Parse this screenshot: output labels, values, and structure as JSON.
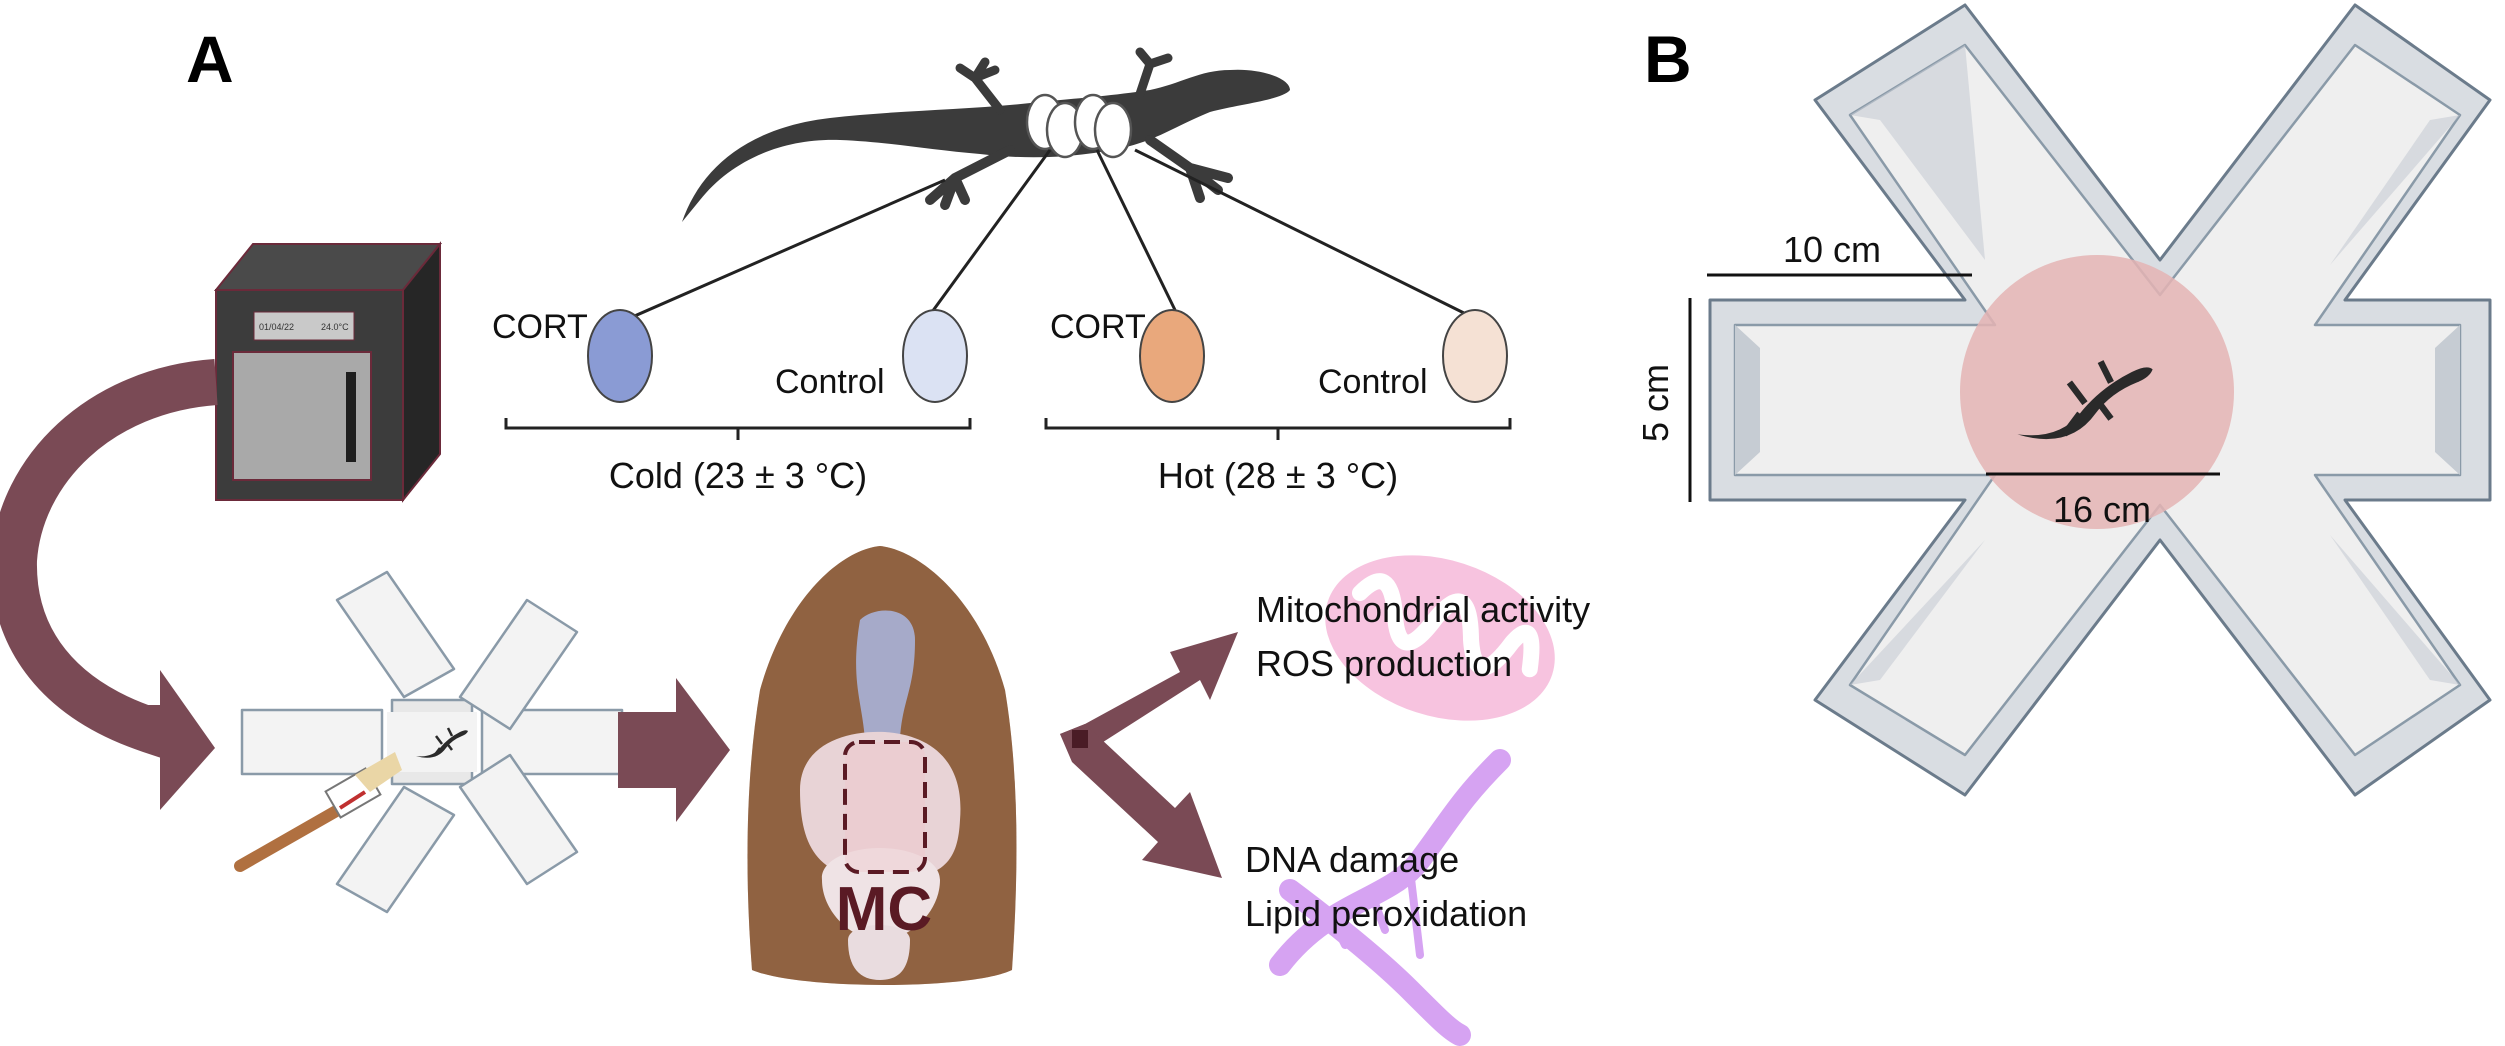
{
  "panels": {
    "a": "A",
    "b": "B"
  },
  "incubator": {
    "date": "01/04/22",
    "temp": "24.0°C"
  },
  "eggs": {
    "cort_label": "CORT",
    "control_label": "Control"
  },
  "groups": {
    "cold": "Cold (23 ± 3 °C)",
    "hot": "Hot (28 ± 3 °C)"
  },
  "brain": {
    "region_label": "MC"
  },
  "outcomes": {
    "line1": "Mitochondrial activity",
    "line2": "ROS production",
    "line3": "DNA damage",
    "line4": "Lipid peroxidation"
  },
  "arena": {
    "arm_length": "10 cm",
    "wall_height": "5 cm",
    "center_diameter": "16 cm"
  },
  "colors": {
    "arrow": "#7a4a55",
    "cort_cold": "#8a9bd4",
    "control_cold": "#dbe2f3",
    "cort_hot": "#e9a87c",
    "control_hot": "#f5e1d4",
    "mito": "#f7c3df",
    "dna": "#d6a3f2",
    "center": "#e4b4b4"
  }
}
